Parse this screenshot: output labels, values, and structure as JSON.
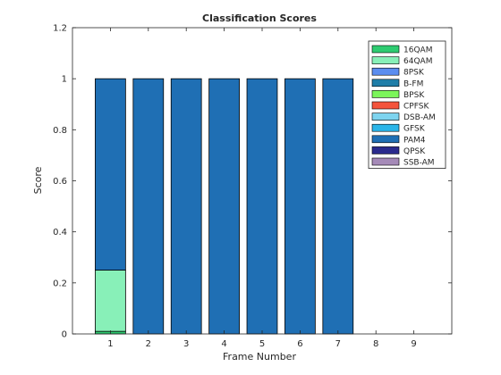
{
  "chart_data": {
    "type": "bar",
    "stacked": true,
    "title": "Classification Scores",
    "xlabel": "Frame Number",
    "ylabel": "Score",
    "ylim": [
      0,
      1.2
    ],
    "xlim": [
      0,
      10
    ],
    "x_ticks": [
      "1",
      "2",
      "3",
      "4",
      "5",
      "6",
      "7",
      "8",
      "9"
    ],
    "y_ticks": [
      "0",
      "0.2",
      "0.4",
      "0.6",
      "0.8",
      "1",
      "1.2"
    ],
    "categories": [
      1,
      2,
      3,
      4,
      5,
      6,
      7,
      8,
      9
    ],
    "grid": false,
    "legend_position": "top-right",
    "series": [
      {
        "name": "16QAM",
        "color": "#2ecc71",
        "values": [
          0.01,
          0,
          0,
          0,
          0,
          0,
          0,
          0,
          0
        ]
      },
      {
        "name": "64QAM",
        "color": "#88f0b8",
        "values": [
          0.24,
          0,
          0,
          0,
          0,
          0,
          0,
          0,
          0
        ]
      },
      {
        "name": "8PSK",
        "color": "#5b8def",
        "values": [
          0,
          0,
          0,
          0,
          0,
          0,
          0,
          0,
          0
        ]
      },
      {
        "name": "B-FM",
        "color": "#1f7ea8",
        "values": [
          0,
          0,
          0,
          0,
          0,
          0,
          0,
          0,
          0
        ]
      },
      {
        "name": "BPSK",
        "color": "#7cf55a",
        "values": [
          0,
          0,
          0,
          0,
          0,
          0,
          0,
          0,
          0
        ]
      },
      {
        "name": "CPFSK",
        "color": "#f4543c",
        "values": [
          0,
          0,
          0,
          0,
          0,
          0,
          0,
          0,
          0
        ]
      },
      {
        "name": "DSB-AM",
        "color": "#7ed4ef",
        "values": [
          0,
          0,
          0,
          0,
          0,
          0,
          0,
          0,
          0
        ]
      },
      {
        "name": "GFSK",
        "color": "#2bb5e8",
        "values": [
          0,
          0,
          0,
          0,
          0,
          0,
          0,
          0,
          0
        ]
      },
      {
        "name": "PAM4",
        "color": "#1f6fb4",
        "values": [
          0.75,
          1,
          1,
          1,
          1,
          1,
          1,
          0,
          0
        ]
      },
      {
        "name": "QPSK",
        "color": "#2a2a8c",
        "values": [
          0,
          0,
          0,
          0,
          0,
          0,
          0,
          0,
          0
        ]
      },
      {
        "name": "SSB-AM",
        "color": "#a58ab8",
        "values": [
          0,
          0,
          0,
          0,
          0,
          0,
          0,
          0,
          0
        ]
      }
    ]
  }
}
